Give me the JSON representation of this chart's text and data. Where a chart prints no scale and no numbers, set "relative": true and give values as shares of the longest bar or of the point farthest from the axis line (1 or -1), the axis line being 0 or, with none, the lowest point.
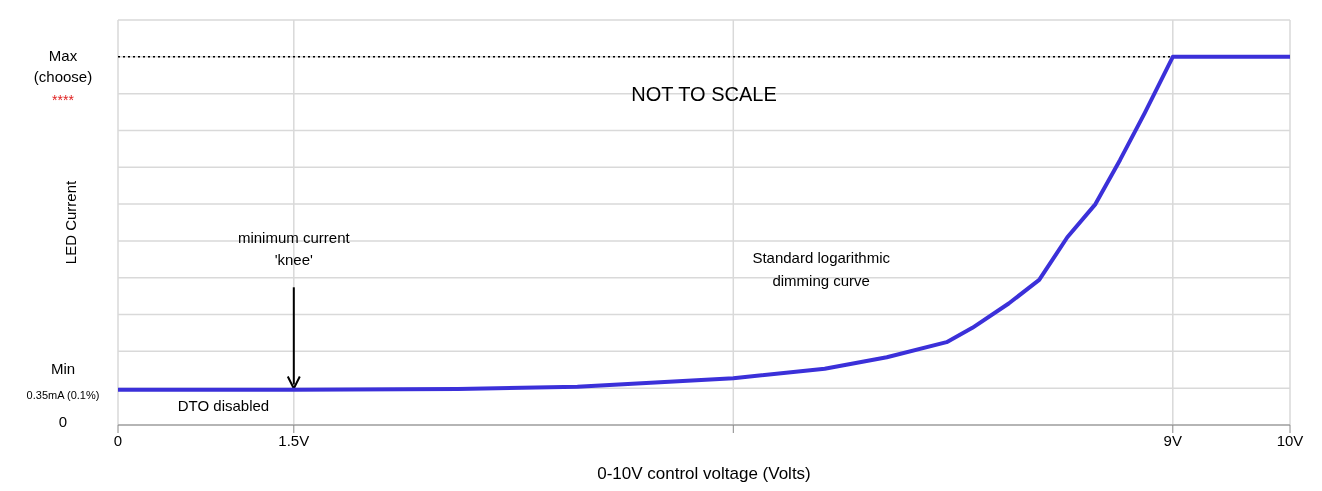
{
  "chart_data": {
    "type": "line",
    "relative": true,
    "xlabel": "0-10V control voltage (Volts)",
    "ylabel": "LED Current",
    "xlim": [
      0,
      10
    ],
    "xticks": [
      0,
      {
        "value": 1.5,
        "label": "1.5V"
      },
      {
        "value": 5.25,
        "label": null
      },
      {
        "value": 9,
        "label": "9V"
      },
      {
        "value": 10,
        "label": "10V"
      }
    ],
    "x": [
      0,
      1.5,
      2.9,
      3.92,
      5.25,
      6.03,
      6.56,
      7.07,
      7.29,
      7.6,
      7.86,
      8.1,
      8.34,
      8.55,
      8.76,
      9,
      10
    ],
    "series": [
      {
        "color": "#3b30d9",
        "values": [
          0.096,
          0.096,
          0.098,
          0.104,
          0.127,
          0.153,
          0.184,
          0.225,
          0.264,
          0.33,
          0.394,
          0.51,
          0.6,
          0.72,
          0.847,
          1,
          1
        ]
      }
    ],
    "ref_lines": [
      {
        "axis": "y",
        "value": 1,
        "label": "Max (choose)",
        "color": "#000000",
        "line_style": "dotted"
      }
    ],
    "annotations": [
      "NOT TO SCALE",
      "****",
      "0.35mA (0.1%)",
      "DTO disabled",
      "Standard logarithmic dimming curve",
      "Min",
      "0",
      "minimum current 'knee'"
    ],
    "grid": true,
    "marker": "none",
    "line_style": "solid"
  }
}
